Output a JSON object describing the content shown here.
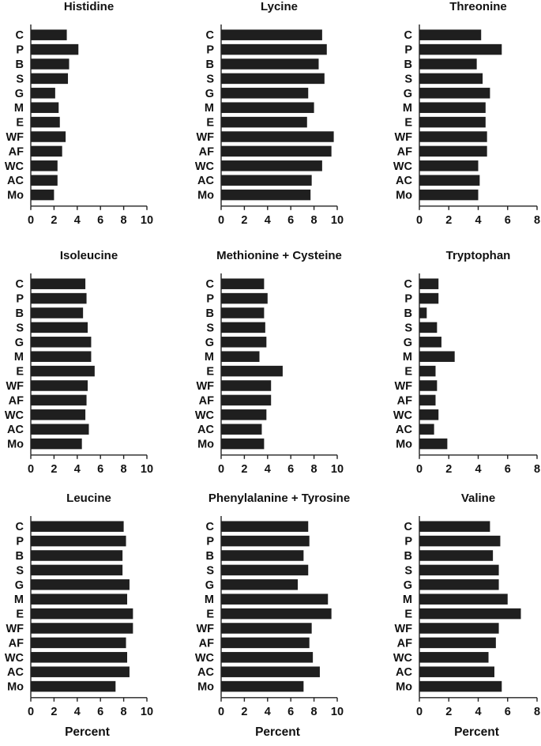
{
  "chart_data": [
    {
      "type": "bar",
      "orientation": "horizontal",
      "title": "Histidine",
      "xlabel": "",
      "categories": [
        "C",
        "P",
        "B",
        "S",
        "G",
        "M",
        "E",
        "WF",
        "AF",
        "WC",
        "AC",
        "Mo"
      ],
      "values": [
        3.1,
        4.1,
        3.3,
        3.2,
        2.1,
        2.4,
        2.5,
        3.0,
        2.7,
        2.3,
        2.3,
        2.0
      ],
      "xlim": [
        0,
        10
      ],
      "xticks": [
        0,
        2,
        4,
        6,
        8,
        10
      ]
    },
    {
      "type": "bar",
      "orientation": "horizontal",
      "title": "Lycine",
      "xlabel": "",
      "categories": [
        "C",
        "P",
        "B",
        "S",
        "G",
        "M",
        "E",
        "WF",
        "AF",
        "WC",
        "AC",
        "Mo"
      ],
      "values": [
        8.7,
        9.1,
        8.4,
        8.9,
        7.5,
        8.0,
        7.4,
        9.7,
        9.5,
        8.7,
        7.8,
        7.7
      ],
      "xlim": [
        0,
        10
      ],
      "xticks": [
        0,
        2,
        4,
        6,
        8,
        10
      ]
    },
    {
      "type": "bar",
      "orientation": "horizontal",
      "title": "Threonine",
      "xlabel": "",
      "categories": [
        "C",
        "P",
        "B",
        "S",
        "G",
        "M",
        "E",
        "WF",
        "AF",
        "WC",
        "AC",
        "Mo"
      ],
      "values": [
        4.2,
        5.6,
        3.9,
        4.3,
        4.8,
        4.5,
        4.5,
        4.6,
        4.6,
        4.0,
        4.1,
        4.0
      ],
      "xlim": [
        0,
        8
      ],
      "xticks": [
        0,
        2,
        4,
        6,
        8
      ]
    },
    {
      "type": "bar",
      "orientation": "horizontal",
      "title": "Isoleucine",
      "xlabel": "",
      "categories": [
        "C",
        "P",
        "B",
        "S",
        "G",
        "M",
        "E",
        "WF",
        "AF",
        "WC",
        "AC",
        "Mo"
      ],
      "values": [
        4.7,
        4.8,
        4.5,
        4.9,
        5.2,
        5.2,
        5.5,
        4.9,
        4.8,
        4.7,
        5.0,
        4.4
      ],
      "xlim": [
        0,
        10
      ],
      "xticks": [
        0,
        2,
        4,
        6,
        8,
        10
      ]
    },
    {
      "type": "bar",
      "orientation": "horizontal",
      "title": "Methionine + Cysteine",
      "xlabel": "",
      "categories": [
        "C",
        "P",
        "B",
        "S",
        "G",
        "M",
        "E",
        "WF",
        "AF",
        "WC",
        "AC",
        "Mo"
      ],
      "values": [
        3.7,
        4.0,
        3.7,
        3.8,
        3.9,
        3.3,
        5.3,
        4.3,
        4.3,
        3.9,
        3.5,
        3.7
      ],
      "xlim": [
        0,
        10
      ],
      "xticks": [
        0,
        2,
        4,
        6,
        8,
        10
      ]
    },
    {
      "type": "bar",
      "orientation": "horizontal",
      "title": "Tryptophan",
      "xlabel": "",
      "categories": [
        "C",
        "P",
        "B",
        "S",
        "G",
        "M",
        "E",
        "WF",
        "AF",
        "WC",
        "AC",
        "Mo"
      ],
      "values": [
        1.3,
        1.3,
        0.5,
        1.2,
        1.5,
        2.4,
        1.1,
        1.2,
        1.1,
        1.3,
        1.0,
        1.9
      ],
      "xlim": [
        0,
        8
      ],
      "xticks": [
        0,
        2,
        4,
        6,
        8
      ]
    },
    {
      "type": "bar",
      "orientation": "horizontal",
      "title": "Leucine",
      "xlabel": "Percent",
      "categories": [
        "C",
        "P",
        "B",
        "S",
        "G",
        "M",
        "E",
        "WF",
        "AF",
        "WC",
        "AC",
        "Mo"
      ],
      "values": [
        8.0,
        8.2,
        7.9,
        7.9,
        8.5,
        8.3,
        8.8,
        8.8,
        8.2,
        8.3,
        8.5,
        7.3
      ],
      "xlim": [
        0,
        10
      ],
      "xticks": [
        0,
        2,
        4,
        6,
        8,
        10
      ]
    },
    {
      "type": "bar",
      "orientation": "horizontal",
      "title": "Phenylalanine + Tyrosine",
      "xlabel": "Percent",
      "categories": [
        "C",
        "P",
        "B",
        "S",
        "G",
        "M",
        "E",
        "WF",
        "AF",
        "WC",
        "AC",
        "Mo"
      ],
      "values": [
        7.5,
        7.6,
        7.1,
        7.5,
        6.6,
        9.2,
        9.5,
        7.8,
        7.6,
        7.9,
        8.5,
        7.1
      ],
      "xlim": [
        0,
        10
      ],
      "xticks": [
        0,
        2,
        4,
        6,
        8,
        10
      ]
    },
    {
      "type": "bar",
      "orientation": "horizontal",
      "title": "Valine",
      "xlabel": "Percent",
      "categories": [
        "C",
        "P",
        "B",
        "S",
        "G",
        "M",
        "E",
        "WF",
        "AF",
        "WC",
        "AC",
        "Mo"
      ],
      "values": [
        4.8,
        5.5,
        5.0,
        5.4,
        5.4,
        6.0,
        6.9,
        5.4,
        5.2,
        4.7,
        5.1,
        5.6
      ],
      "xlim": [
        0,
        8
      ],
      "xticks": [
        0,
        2,
        4,
        6,
        8
      ]
    }
  ]
}
